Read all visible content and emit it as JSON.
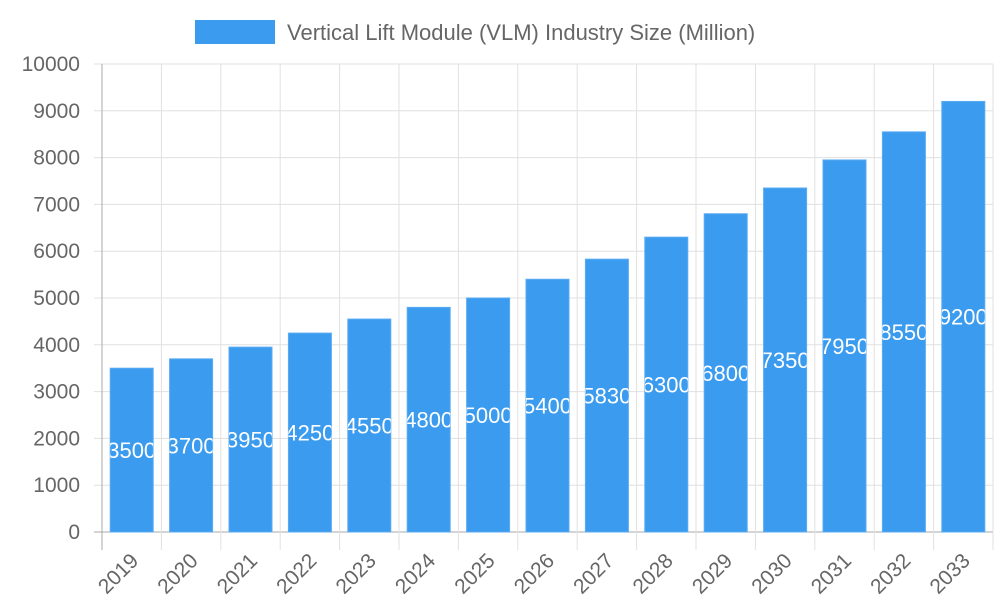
{
  "chart_data": {
    "type": "bar",
    "title": "",
    "xlabel": "",
    "ylabel": "",
    "categories": [
      "2019",
      "2020",
      "2021",
      "2022",
      "2023",
      "2024",
      "2025",
      "2026",
      "2027",
      "2028",
      "2029",
      "2030",
      "2031",
      "2032",
      "2033"
    ],
    "series": [
      {
        "name": "Vertical Lift Module (VLM) Industry Size (Million)",
        "values": [
          3500,
          3700,
          3950,
          4250,
          4550,
          4800,
          5000,
          5400,
          5830,
          6300,
          6800,
          7350,
          7950,
          8550,
          9200
        ]
      }
    ],
    "ylim": [
      0,
      10000
    ],
    "yticks": [
      0,
      1000,
      2000,
      3000,
      4000,
      5000,
      6000,
      7000,
      8000,
      9000,
      10000
    ],
    "grid": true,
    "legend": "top-center",
    "data_labels": true,
    "colors": {
      "bar": "#3a9bef",
      "bar_border": "#5aabf2",
      "grid": "#e0e0e0",
      "axis": "#aaaaaa",
      "text": "#666666"
    }
  }
}
